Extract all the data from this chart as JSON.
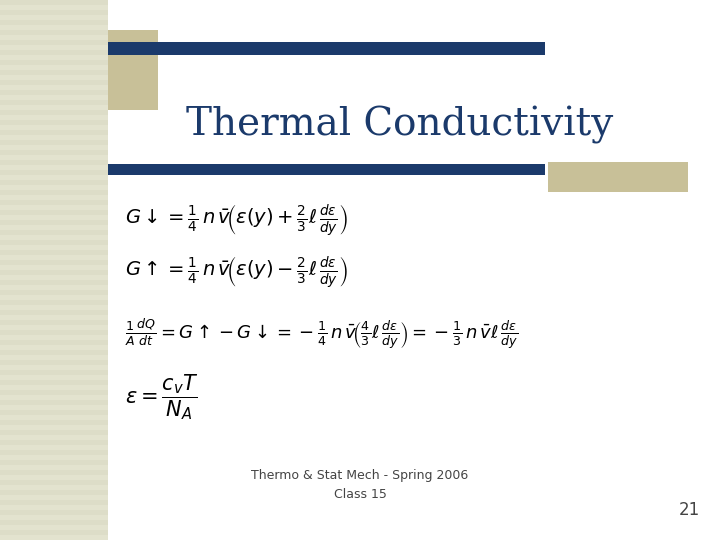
{
  "title": "Thermal Conductivity",
  "title_color": "#1B3A6B",
  "title_fontsize": 28,
  "bg_color": "#FFFFFF",
  "decoration_color_dark": "#1B3A6B",
  "decoration_color_tan": "#C8C098",
  "footer_text": "Thermo & Stat Mech - Spring 2006\nClass 15",
  "footer_fontsize": 9,
  "page_number": "21",
  "eq1": "$G\\downarrow = \\frac{1}{4}\\, n\\,\\bar{v}\\!\\left( \\varepsilon(y) + \\frac{2}{3}\\ell\\, \\frac{d\\varepsilon}{dy} \\right)$",
  "eq2": "$G\\uparrow = \\frac{1}{4}\\, n\\,\\bar{v}\\!\\left( \\varepsilon(y) - \\frac{2}{3}\\ell\\, \\frac{d\\varepsilon}{dy} \\right)$",
  "eq3": "$\\frac{1}{A}\\frac{dQ}{dt} = G\\uparrow -G\\downarrow = -\\frac{1}{4}\\,n\\,\\bar{v}\\!\\left(\\frac{4}{3}\\ell\\,\\frac{d\\varepsilon}{dy}\\right) = -\\frac{1}{3}\\,n\\,\\bar{v}\\ell\\,\\frac{d\\varepsilon}{dy}$",
  "eq4": "$\\varepsilon = \\dfrac{c_v T}{N_A}$",
  "eq_fontsize": 14,
  "eq_color": "#000000",
  "stripe_color": "#C8C8B0",
  "stripe_bg": "#E8E8D8"
}
